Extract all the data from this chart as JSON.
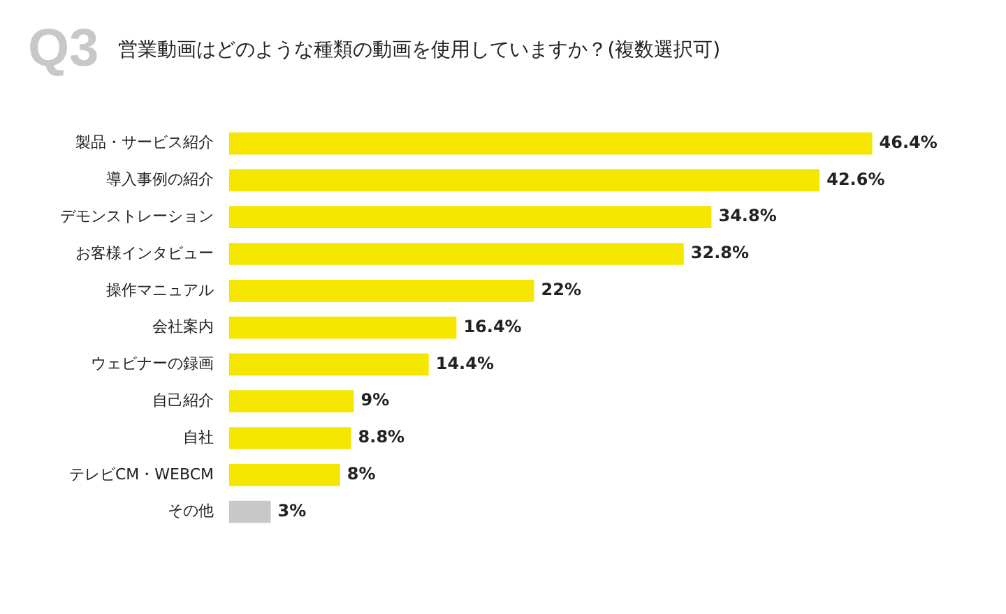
{
  "chart_data": {
    "type": "bar",
    "orientation": "horizontal",
    "title": "営業動画はどのような種類の動画を使用していますか？(複数選択可)",
    "annotations": [
      "Q3"
    ],
    "categories": [
      "製品・サービス紹介",
      "導入事例の紹介",
      "デモンストレーション",
      "お客様インタビュー",
      "操作マニュアル",
      "会社案内",
      "ウェビナーの録画",
      "自己紹介",
      "自社",
      "テレビCM・WEBCM",
      "その他"
    ],
    "values": [
      46.4,
      42.6,
      34.8,
      32.8,
      22,
      16.4,
      14.4,
      9,
      8.8,
      8,
      3
    ],
    "colors": [
      "#f5e600",
      "#f5e600",
      "#f5e600",
      "#f5e600",
      "#f5e600",
      "#f5e600",
      "#f5e600",
      "#f5e600",
      "#f5e600",
      "#f5e600",
      "#c8c8c8"
    ],
    "value_labels": [
      "46.4%",
      "42.6%",
      "34.8%",
      "32.8%",
      "22%",
      "16.4%",
      "14.4%",
      "9%",
      "8.8%",
      "8%",
      "3%"
    ],
    "legend": false
  }
}
